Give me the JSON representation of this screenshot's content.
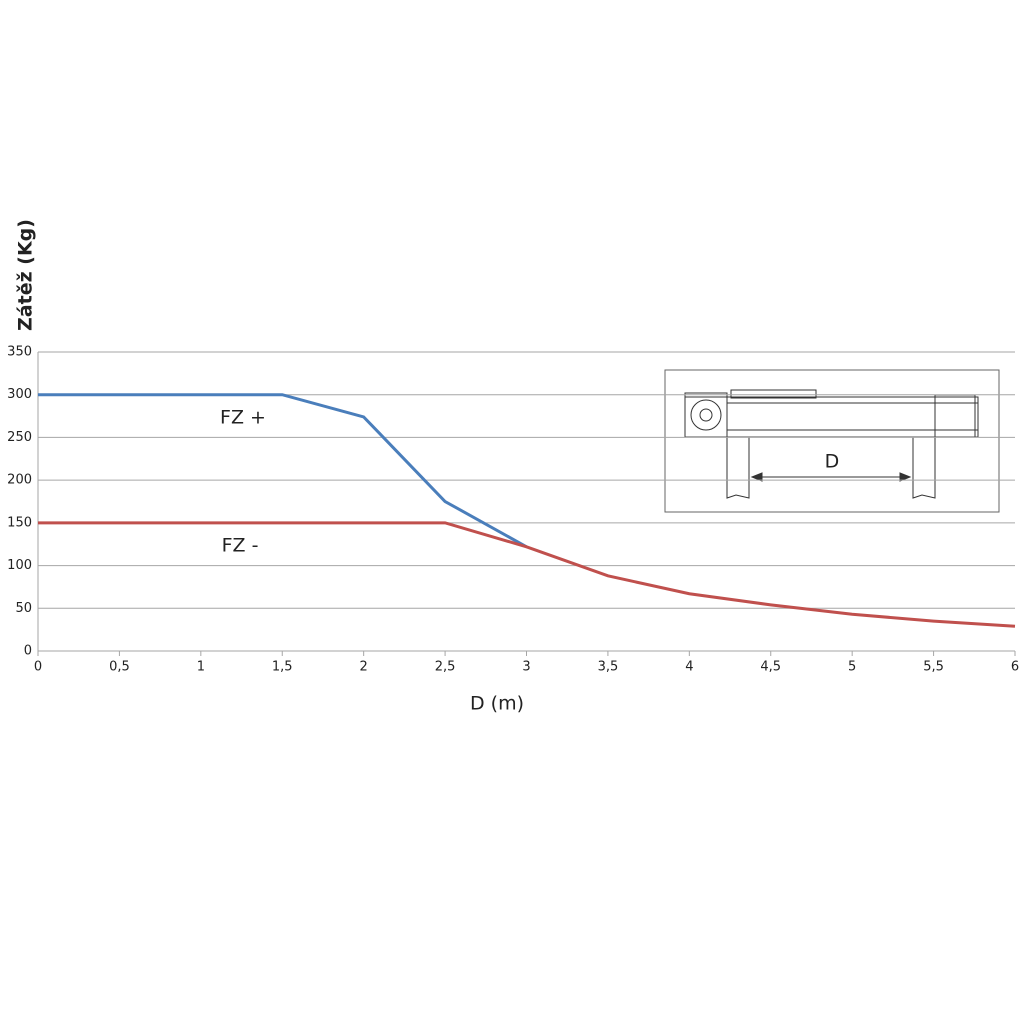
{
  "chart_data": {
    "type": "line",
    "x_label": "D (m)",
    "y_label": "Zátěž (Kg)",
    "x": [
      0,
      0.5,
      1,
      1.5,
      2,
      2.5,
      3,
      3.5,
      4,
      4.5,
      5,
      5.5,
      6
    ],
    "series": [
      {
        "name": "FZ +",
        "color": "#4a7ebb",
        "values": [
          300,
          300,
          300,
          300,
          274,
          175,
          122,
          null,
          null,
          null,
          null,
          null,
          null
        ]
      },
      {
        "name": "FZ -",
        "color": "#c0504d",
        "values": [
          150,
          150,
          150,
          150,
          150,
          150,
          122,
          88,
          67,
          54,
          43,
          35,
          29
        ]
      }
    ],
    "xlim": [
      0,
      6
    ],
    "xticks": [
      0,
      {
        "value": 0.5,
        "label": "0,5"
      },
      1,
      {
        "value": 1.5,
        "label": "1,5"
      },
      2,
      {
        "value": 2.5,
        "label": "2,5"
      },
      3,
      {
        "value": 3.5,
        "label": "3,5"
      },
      4,
      {
        "value": 4.5,
        "label": "4,5"
      },
      5,
      {
        "value": 5.5,
        "label": "5,5"
      },
      6
    ],
    "ylim": [
      0,
      350
    ],
    "yticks": [
      0,
      50,
      100,
      150,
      200,
      250,
      300,
      350
    ],
    "grid": true,
    "annotations": [
      "D"
    ]
  }
}
